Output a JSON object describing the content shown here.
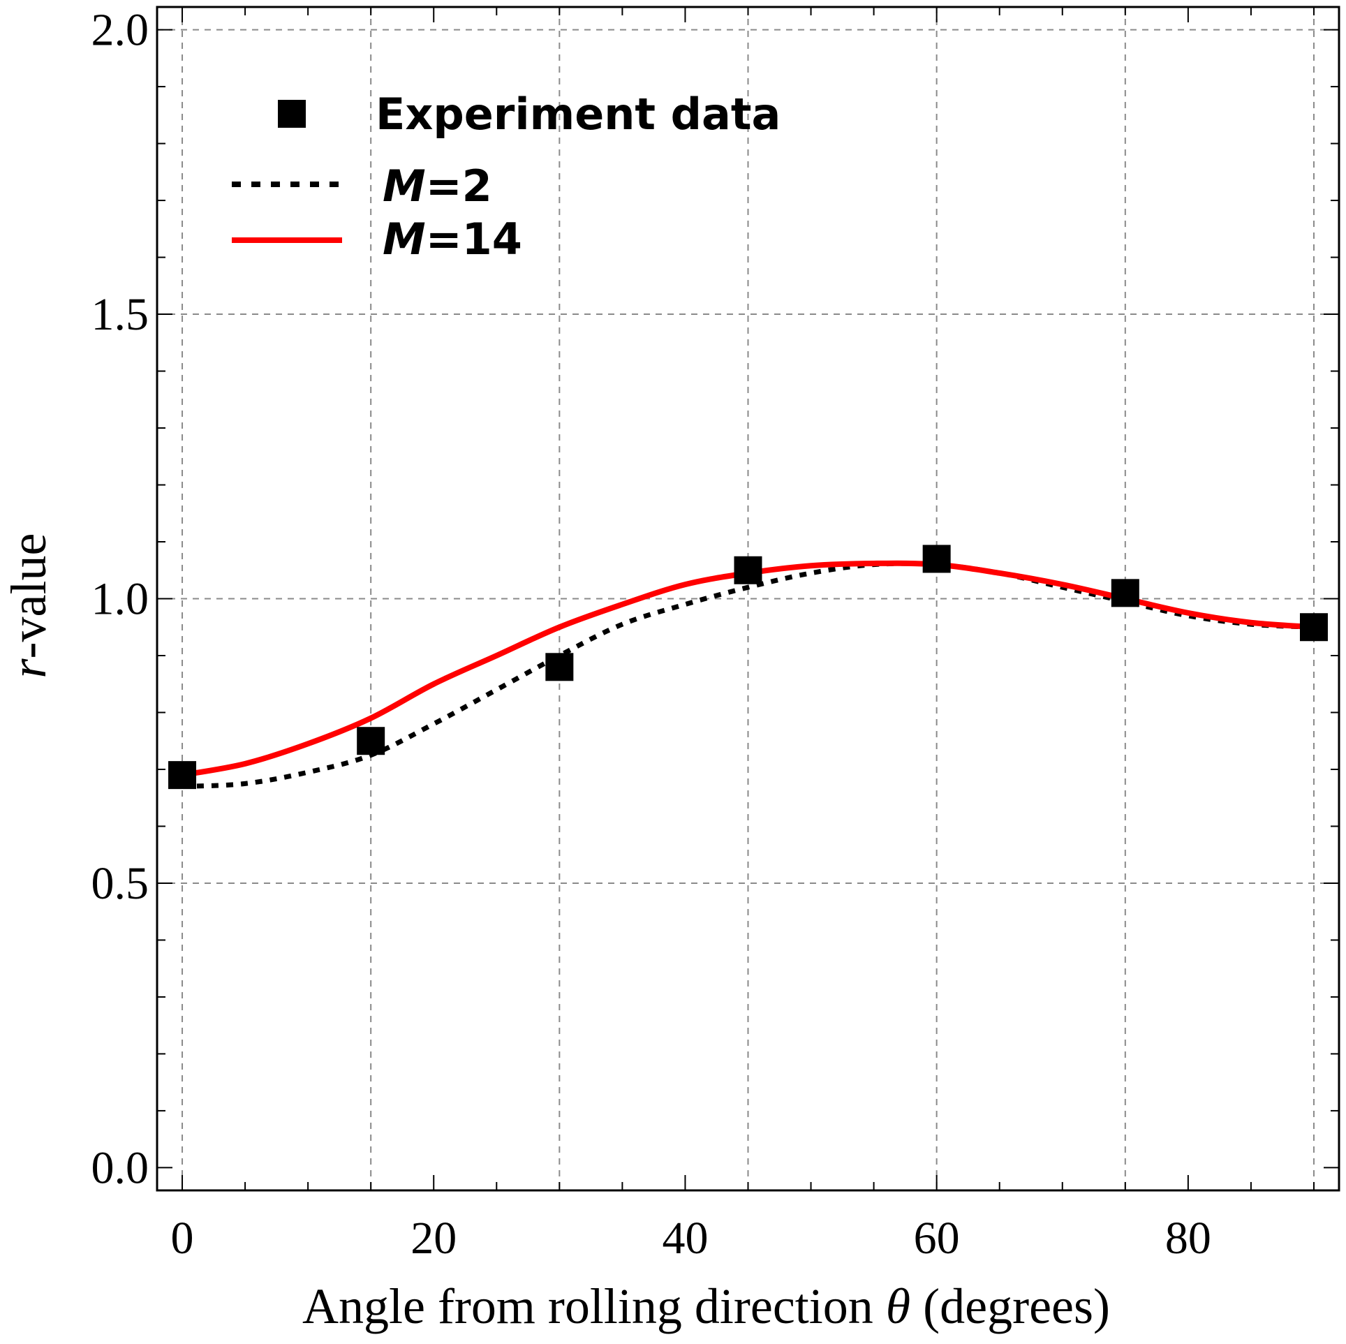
{
  "chart_data": {
    "type": "line",
    "xlabel": {
      "prefix": "Angle from rolling direction ",
      "symbol": "θ",
      "suffix": " (degrees)"
    },
    "ylabel": {
      "symbol": "r",
      "suffix": "-value"
    },
    "xlim": [
      -2,
      92
    ],
    "ylim": [
      -0.04,
      2.04
    ],
    "x_ticks": [
      0,
      20,
      40,
      60,
      80
    ],
    "x_tick_labels": [
      "0",
      "20",
      "40",
      "60",
      "80"
    ],
    "y_ticks": [
      0.0,
      0.5,
      1.0,
      1.5,
      2.0
    ],
    "y_tick_labels": [
      "0.0",
      "0.5",
      "1.0",
      "1.5",
      "2.0"
    ],
    "x_grid": [
      0,
      15,
      30,
      45,
      60,
      75,
      90
    ],
    "y_grid": [
      0.5,
      1.0,
      1.5,
      2.0
    ],
    "grid": true,
    "legend_position": "top-left",
    "series": [
      {
        "name": "Experiment data",
        "kind": "scatter",
        "marker": "square",
        "color": "#000000",
        "x": [
          0,
          15,
          30,
          45,
          60,
          75,
          90
        ],
        "y": [
          0.69,
          0.75,
          0.88,
          1.05,
          1.07,
          1.01,
          0.95
        ]
      },
      {
        "name_italic": "M",
        "name_rest": "=2",
        "kind": "line",
        "style": "dotted",
        "color": "#000000",
        "x": [
          0,
          5,
          10,
          15,
          20,
          25,
          30,
          35,
          40,
          45,
          50,
          55,
          60,
          65,
          70,
          75,
          80,
          85,
          90
        ],
        "y": [
          0.67,
          0.675,
          0.695,
          0.725,
          0.78,
          0.84,
          0.9,
          0.955,
          0.99,
          1.02,
          1.045,
          1.06,
          1.06,
          1.045,
          1.02,
          0.995,
          0.97,
          0.955,
          0.95
        ]
      },
      {
        "name_italic": "M",
        "name_rest": "=14",
        "kind": "line",
        "style": "solid",
        "color": "#ff0000",
        "x": [
          0,
          5,
          10,
          15,
          20,
          25,
          30,
          35,
          40,
          45,
          50,
          55,
          60,
          65,
          70,
          75,
          80,
          85,
          90
        ],
        "y": [
          0.69,
          0.71,
          0.745,
          0.79,
          0.85,
          0.9,
          0.95,
          0.99,
          1.025,
          1.045,
          1.058,
          1.062,
          1.06,
          1.045,
          1.025,
          1.0,
          0.975,
          0.958,
          0.95
        ]
      }
    ]
  }
}
